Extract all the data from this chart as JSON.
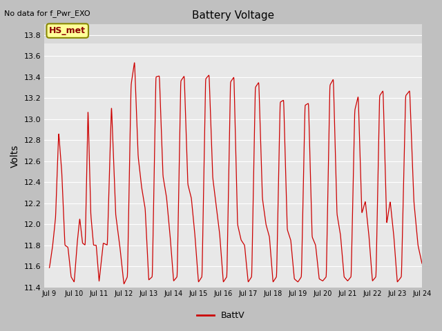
{
  "title": "Battery Voltage",
  "top_left_text": "No data for f_Pwr_EXO",
  "ylabel": "Volts",
  "legend_label": "BattV",
  "line_color": "#cc0000",
  "figure_bg": "#c8c8c8",
  "plot_bg_color": "#e8e8e8",
  "plot_bg_top": "#d8d8d8",
  "ylim": [
    11.4,
    13.9
  ],
  "yticks": [
    11.4,
    11.6,
    11.8,
    12.0,
    12.2,
    12.4,
    12.6,
    12.8,
    13.0,
    13.2,
    13.4,
    13.6,
    13.8
  ],
  "hs_met_label": "HS_met",
  "hs_met_bg": "#ffff99",
  "hs_met_border": "#888800",
  "xtick_labels": [
    "Jul 9",
    "Jul 10",
    "Jul 11",
    "Jul 12",
    "Jul 13",
    "Jul 14",
    "Jul 15",
    "Jul 16",
    "Jul 17",
    "Jul 18",
    "Jul 19",
    "Jul 20",
    "Jul 21",
    "Jul 22",
    "Jul 23",
    "Jul 24"
  ],
  "day_profiles": [
    [
      11.58,
      11.6,
      12.06,
      12.88,
      12.5,
      11.9,
      11.8,
      11.5,
      11.45
    ],
    [
      11.45,
      11.5,
      11.8,
      12.06,
      13.12,
      12.3,
      11.9,
      11.8,
      11.82,
      11.8,
      11.45
    ],
    [
      11.45,
      11.5,
      11.82,
      11.8,
      13.15,
      12.35,
      11.8,
      11.43
    ],
    [
      11.43,
      11.5,
      13.32,
      13.55,
      12.65,
      12.2,
      11.9,
      11.47
    ],
    [
      11.47,
      11.5,
      13.35,
      13.41,
      12.38,
      12.26,
      11.9,
      11.46
    ],
    [
      11.46,
      11.5,
      13.3,
      13.42,
      12.46,
      12.22,
      11.9,
      11.45
    ],
    [
      11.45,
      11.5,
      13.36,
      13.41,
      12.45,
      12.17,
      11.9,
      11.45
    ],
    [
      11.45,
      11.5,
      13.33,
      13.4,
      12.22,
      12.0,
      11.85,
      11.45
    ],
    [
      11.45,
      11.5,
      13.3,
      13.36,
      12.26,
      12.02,
      11.88,
      11.45
    ],
    [
      11.45,
      11.5,
      13.16,
      13.18,
      11.95,
      11.85,
      11.48,
      11.45
    ],
    [
      11.45,
      11.5,
      13.13,
      13.15,
      11.88,
      11.8,
      11.48,
      11.46
    ],
    [
      11.46,
      11.5,
      13.3,
      13.38,
      12.12,
      11.9,
      11.5,
      11.46
    ],
    [
      11.46,
      11.5,
      13.08,
      13.22,
      12.1,
      12.22,
      11.9,
      11.46
    ],
    [
      11.46,
      11.5,
      13.22,
      13.27,
      12.0,
      12.22,
      11.9,
      11.45
    ],
    [
      11.45,
      11.5,
      13.22,
      13.27,
      12.22,
      11.8,
      11.62
    ]
  ],
  "spike_sharpness": 0.15
}
